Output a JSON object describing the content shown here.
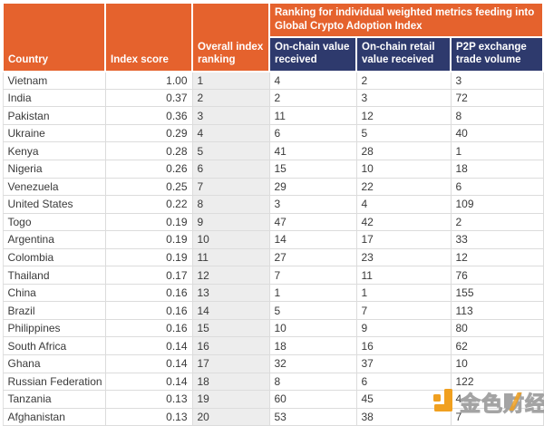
{
  "table": {
    "header": {
      "country": "Country",
      "index_score": "Index score",
      "overall_ranking": "Overall index ranking",
      "metrics_group": "Ranking for individual weighted metrics feeding into Global Crypto Adoption Index",
      "on_chain_value": "On-chain value received",
      "on_chain_retail": "On-chain retail value received",
      "p2p_volume": "P2P exchange trade volume"
    },
    "rows": [
      [
        "Vietnam",
        "1.00",
        "1",
        "4",
        "2",
        "3"
      ],
      [
        "India",
        "0.37",
        "2",
        "2",
        "3",
        "72"
      ],
      [
        "Pakistan",
        "0.36",
        "3",
        "11",
        "12",
        "8"
      ],
      [
        "Ukraine",
        "0.29",
        "4",
        "6",
        "5",
        "40"
      ],
      [
        "Kenya",
        "0.28",
        "5",
        "41",
        "28",
        "1"
      ],
      [
        "Nigeria",
        "0.26",
        "6",
        "15",
        "10",
        "18"
      ],
      [
        "Venezuela",
        "0.25",
        "7",
        "29",
        "22",
        "6"
      ],
      [
        "United States",
        "0.22",
        "8",
        "3",
        "4",
        "109"
      ],
      [
        "Togo",
        "0.19",
        "9",
        "47",
        "42",
        "2"
      ],
      [
        "Argentina",
        "0.19",
        "10",
        "14",
        "17",
        "33"
      ],
      [
        "Colombia",
        "0.19",
        "11",
        "27",
        "23",
        "12"
      ],
      [
        "Thailand",
        "0.17",
        "12",
        "7",
        "11",
        "76"
      ],
      [
        "China",
        "0.16",
        "13",
        "1",
        "1",
        "155"
      ],
      [
        "Brazil",
        "0.16",
        "14",
        "5",
        "7",
        "113"
      ],
      [
        "Philippines",
        "0.16",
        "15",
        "10",
        "9",
        "80"
      ],
      [
        "South Africa",
        "0.14",
        "16",
        "18",
        "16",
        "62"
      ],
      [
        "Ghana",
        "0.14",
        "17",
        "32",
        "37",
        "10"
      ],
      [
        "Russian Federation",
        "0.14",
        "18",
        "8",
        "6",
        "122"
      ],
      [
        "Tanzania",
        "0.13",
        "19",
        "60",
        "45",
        "4"
      ],
      [
        "Afghanistan",
        "0.13",
        "20",
        "53",
        "38",
        "7"
      ]
    ]
  },
  "watermark": {
    "text": "金色财经",
    "logo": "jinse-logo"
  },
  "colors": {
    "header_orange": "#E5622D",
    "header_navy": "#2E3A6D",
    "rank_column_bg": "#EDEDED",
    "row_border": "#DCDCDC",
    "body_text": "#3A3A3A",
    "watermark_orange": "#F0A020"
  },
  "chart_data": {
    "type": "table",
    "title": "Global Crypto Adoption Index",
    "group_header": "Ranking for individual weighted metrics feeding into Global Crypto Adoption Index",
    "columns": [
      "Country",
      "Index score",
      "Overall index ranking",
      "On-chain value received",
      "On-chain retail value received",
      "P2P exchange trade volume"
    ],
    "rows": [
      [
        "Vietnam",
        1.0,
        1,
        4,
        2,
        3
      ],
      [
        "India",
        0.37,
        2,
        2,
        3,
        72
      ],
      [
        "Pakistan",
        0.36,
        3,
        11,
        12,
        8
      ],
      [
        "Ukraine",
        0.29,
        4,
        6,
        5,
        40
      ],
      [
        "Kenya",
        0.28,
        5,
        41,
        28,
        1
      ],
      [
        "Nigeria",
        0.26,
        6,
        15,
        10,
        18
      ],
      [
        "Venezuela",
        0.25,
        7,
        29,
        22,
        6
      ],
      [
        "United States",
        0.22,
        8,
        3,
        4,
        109
      ],
      [
        "Togo",
        0.19,
        9,
        47,
        42,
        2
      ],
      [
        "Argentina",
        0.19,
        10,
        14,
        17,
        33
      ],
      [
        "Colombia",
        0.19,
        11,
        27,
        23,
        12
      ],
      [
        "Thailand",
        0.17,
        12,
        7,
        11,
        76
      ],
      [
        "China",
        0.16,
        13,
        1,
        1,
        155
      ],
      [
        "Brazil",
        0.16,
        14,
        5,
        7,
        113
      ],
      [
        "Philippines",
        0.16,
        15,
        10,
        9,
        80
      ],
      [
        "South Africa",
        0.14,
        16,
        18,
        16,
        62
      ],
      [
        "Ghana",
        0.14,
        17,
        32,
        37,
        10
      ],
      [
        "Russian Federation",
        0.14,
        18,
        8,
        6,
        122
      ],
      [
        "Tanzania",
        0.13,
        19,
        60,
        45,
        4
      ],
      [
        "Afghanistan",
        0.13,
        20,
        53,
        38,
        7
      ]
    ]
  }
}
